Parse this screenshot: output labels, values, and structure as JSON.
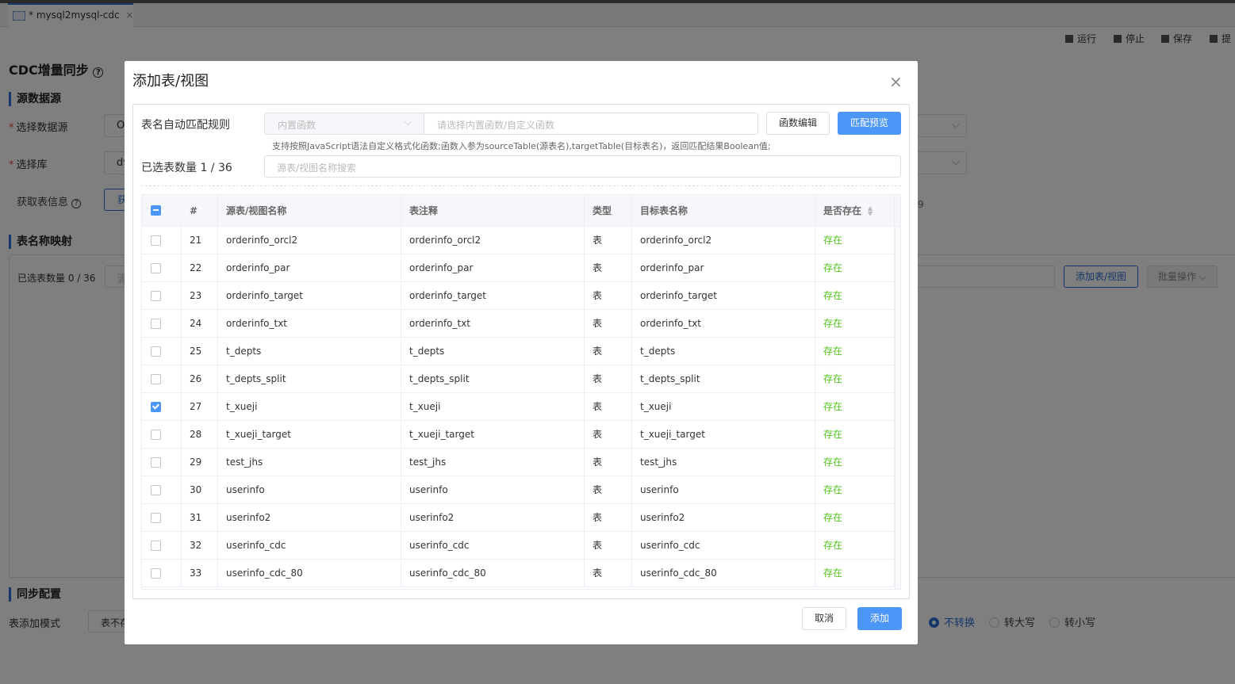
{
  "tab": {
    "mark": "*",
    "title": "mysql2mysql-cdc",
    "close": "×"
  },
  "toolbar": [
    "运行",
    "停止",
    "保存",
    "提"
  ],
  "page": {
    "title": "CDC增量同步",
    "help": "?",
    "source_section": "源数据源",
    "datasource": {
      "mark": "*",
      "label": "选择数据源",
      "value": "O"
    },
    "database": {
      "mark": "*",
      "label": "选择库",
      "value": "dv"
    },
    "fetch": {
      "label": "获取表信息",
      "help": "?",
      "button": "获",
      "note": "9"
    },
    "mapping_section": "表名称映射",
    "mapping": {
      "selected": "已选表数量 0 / 36",
      "search": "源",
      "add": "添加表/视图",
      "batch": "批量操作"
    },
    "sync_section": "同步配置",
    "add_mode": {
      "label": "表添加模式",
      "value": "表不存"
    },
    "case": [
      {
        "label": "不转换",
        "selected": true
      },
      {
        "label": "转大写",
        "selected": false
      },
      {
        "label": "转小写",
        "selected": false
      }
    ]
  },
  "dialog": {
    "title": "添加表/视图",
    "close": "×",
    "rule_label": "表名自动匹配规则",
    "rule_type": "内置函数",
    "rule_placeholder": "请选择内置函数/自定义函数",
    "edit_button": "函数编辑",
    "preview_button": "匹配预览",
    "hint": "支持按照JavaScript语法自定义格式化函数;函数入参为sourceTable(源表名),targetTable(目标表名)，返回匹配结果Boolean值;",
    "selected": "已选表数量 1 / 36",
    "search_placeholder": "源表/视图名称搜索",
    "table": {
      "headers": [
        "#",
        "源表/视图名称",
        "表注释",
        "类型",
        "目标表名称",
        "是否存在"
      ],
      "rows": [
        {
          "checked": false,
          "cells": [
            "21",
            "orderinfo_orcl2",
            "orderinfo_orcl2",
            "表",
            "orderinfo_orcl2",
            "存在"
          ]
        },
        {
          "checked": false,
          "cells": [
            "22",
            "orderinfo_par",
            "orderinfo_par",
            "表",
            "orderinfo_par",
            "存在"
          ]
        },
        {
          "checked": false,
          "cells": [
            "23",
            "orderinfo_target",
            "orderinfo_target",
            "表",
            "orderinfo_target",
            "存在"
          ]
        },
        {
          "checked": false,
          "cells": [
            "24",
            "orderinfo_txt",
            "orderinfo_txt",
            "表",
            "orderinfo_txt",
            "存在"
          ]
        },
        {
          "checked": false,
          "cells": [
            "25",
            "t_depts",
            "t_depts",
            "表",
            "t_depts",
            "存在"
          ]
        },
        {
          "checked": false,
          "cells": [
            "26",
            "t_depts_split",
            "t_depts_split",
            "表",
            "t_depts_split",
            "存在"
          ]
        },
        {
          "checked": true,
          "cells": [
            "27",
            "t_xueji",
            "t_xueji",
            "表",
            "t_xueji",
            "存在"
          ]
        },
        {
          "checked": false,
          "cells": [
            "28",
            "t_xueji_target",
            "t_xueji_target",
            "表",
            "t_xueji_target",
            "存在"
          ]
        },
        {
          "checked": false,
          "cells": [
            "29",
            "test_jhs",
            "test_jhs",
            "表",
            "test_jhs",
            "存在"
          ]
        },
        {
          "checked": false,
          "cells": [
            "30",
            "userinfo",
            "userinfo",
            "表",
            "userinfo",
            "存在"
          ]
        },
        {
          "checked": false,
          "cells": [
            "31",
            "userinfo2",
            "userinfo2",
            "表",
            "userinfo2",
            "存在"
          ]
        },
        {
          "checked": false,
          "cells": [
            "32",
            "userinfo_cdc",
            "userinfo_cdc",
            "表",
            "userinfo_cdc",
            "存在"
          ]
        },
        {
          "checked": false,
          "cells": [
            "33",
            "userinfo_cdc_80",
            "userinfo_cdc_80",
            "表",
            "userinfo_cdc_80",
            "存在"
          ]
        }
      ]
    },
    "cancel": "取消",
    "confirm": "添加"
  }
}
